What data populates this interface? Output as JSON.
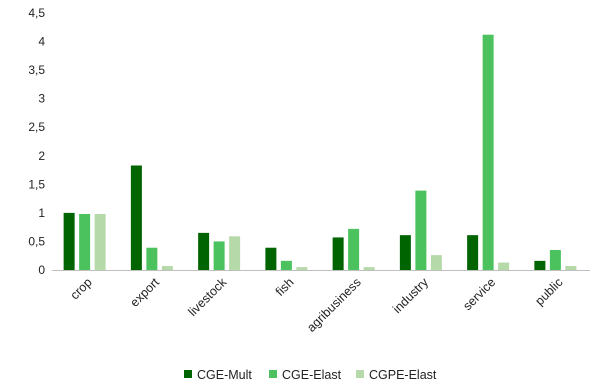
{
  "chart_data": {
    "type": "bar",
    "categories": [
      "crop",
      "export",
      "livestock",
      "fish",
      "agribusiness",
      "industry",
      "service",
      "public"
    ],
    "series": [
      {
        "name": "CGE-Mult",
        "color": "#006400",
        "values": [
          1.0,
          1.83,
          0.65,
          0.39,
          0.57,
          0.61,
          0.61,
          0.16
        ]
      },
      {
        "name": "CGE-Elast",
        "color": "#4CC25E",
        "values": [
          0.98,
          0.39,
          0.5,
          0.16,
          0.72,
          1.39,
          4.12,
          0.35
        ]
      },
      {
        "name": "CGPE-Elast",
        "color": "#B5D9A8",
        "values": [
          0.98,
          0.07,
          0.59,
          0.05,
          0.05,
          0.26,
          0.13,
          0.07
        ]
      }
    ],
    "yticks": [
      "0",
      "0,5",
      "1",
      "1,5",
      "2",
      "2,5",
      "3",
      "3,5",
      "4",
      "4,5"
    ],
    "ylim": [
      0,
      4.5
    ],
    "grid": false,
    "legend": "bottom",
    "title": "",
    "xlabel": "",
    "ylabel": ""
  }
}
